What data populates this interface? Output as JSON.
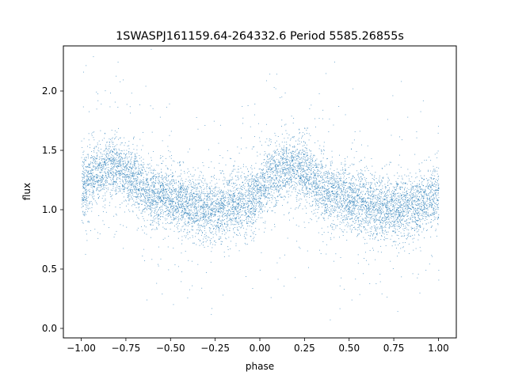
{
  "chart_data": {
    "type": "scatter",
    "title": "1SWASPJ161159.64-264332.6 Period 5585.26855s",
    "xlabel": "phase",
    "ylabel": "flux",
    "xlim": [
      -1.1,
      1.1
    ],
    "ylim": [
      -0.08,
      2.38
    ],
    "xticks": [
      {
        "value": -1.0,
        "label": "−1.00"
      },
      {
        "value": -0.75,
        "label": "−0.75"
      },
      {
        "value": -0.5,
        "label": "−0.50"
      },
      {
        "value": -0.25,
        "label": "−0.25"
      },
      {
        "value": 0.0,
        "label": "0.00"
      },
      {
        "value": 0.25,
        "label": "0.25"
      },
      {
        "value": 0.5,
        "label": "0.50"
      },
      {
        "value": 0.75,
        "label": "0.75"
      },
      {
        "value": 1.0,
        "label": "1.00"
      }
    ],
    "yticks": [
      {
        "value": 0.0,
        "label": "0.0"
      },
      {
        "value": 0.5,
        "label": "0.5"
      },
      {
        "value": 1.0,
        "label": "1.0"
      },
      {
        "value": 1.5,
        "label": "1.5"
      },
      {
        "value": 2.0,
        "label": "2.0"
      }
    ],
    "grid": false,
    "marker_color": "#1f77b4",
    "series": [
      {
        "phase": [
          -1.0,
          -0.95,
          -0.9,
          -0.85,
          -0.8,
          -0.75,
          -0.7,
          -0.65,
          -0.6,
          -0.55,
          -0.5,
          -0.45,
          -0.4,
          -0.35,
          -0.3,
          -0.25,
          -0.2,
          -0.15,
          -0.1,
          -0.05,
          0.0,
          0.05,
          0.1,
          0.15,
          0.2,
          0.25,
          0.3,
          0.35,
          0.4,
          0.45,
          0.5,
          0.55,
          0.6,
          0.65,
          0.7,
          0.75,
          0.8,
          0.85,
          0.9,
          0.95,
          1.0
        ],
        "flux_trend": [
          1.17,
          1.28,
          1.33,
          1.36,
          1.36,
          1.32,
          1.24,
          1.18,
          1.14,
          1.12,
          1.09,
          1.06,
          1.04,
          1.03,
          1.02,
          1.01,
          1.02,
          1.04,
          1.06,
          1.09,
          1.17,
          1.28,
          1.33,
          1.36,
          1.36,
          1.32,
          1.24,
          1.18,
          1.14,
          1.12,
          1.09,
          1.06,
          1.04,
          1.03,
          1.02,
          1.01,
          1.02,
          1.04,
          1.06,
          1.09,
          1.17
        ],
        "flux_scatter_sigma": 0.13,
        "n_points": 9000
      }
    ]
  }
}
